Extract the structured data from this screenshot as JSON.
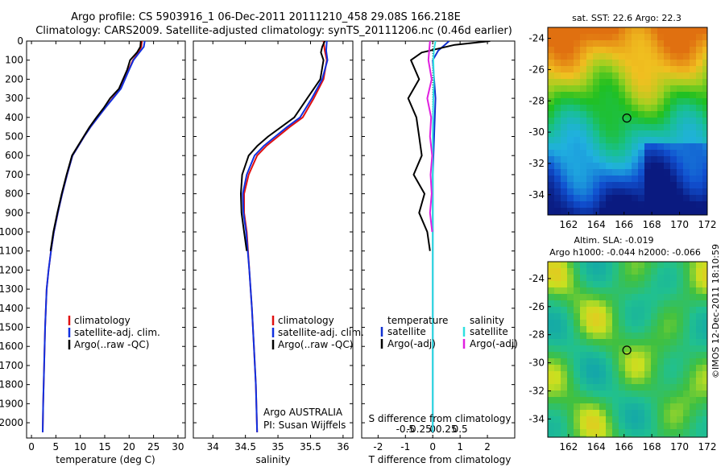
{
  "header": {
    "line1": "Argo profile: CS 5903916_1 06-Dec-2011 20111210_458 29.08S 166.218E",
    "line2": "Climatology: CARS2009. Satellite-adjusted climatology: synTS_20111206.nc (0.46d earlier)"
  },
  "colors": {
    "climatology": "#e01010",
    "satellite_clim": "#1030e0",
    "argo": "#000000",
    "t_satellite": "#1030d0",
    "s_satellite": "#30e0e0",
    "s_argo": "#e020e0",
    "t_argo": "#000000",
    "sst_warm": "#e08a10",
    "sst_cool": "#10208a"
  },
  "icons": {
    "marker": "circle-marker-icon"
  },
  "credit": "©IMOS 12-Dec-2011 18:10:59",
  "chart_data": [
    {
      "type": "line",
      "id": "temperature",
      "xlabel": "temperature (deg C)",
      "ylabel": "",
      "xlim": [
        -1,
        31.5
      ],
      "ylim": [
        2080,
        0
      ],
      "xticks": [
        0,
        5,
        10,
        15,
        20,
        25,
        30
      ],
      "yticks": [
        0,
        100,
        200,
        300,
        400,
        500,
        600,
        700,
        800,
        900,
        1000,
        1100,
        1200,
        1300,
        1400,
        1500,
        1600,
        1700,
        1800,
        1900,
        2000
      ],
      "legend": {
        "position": "lower-center",
        "entries": [
          "climatology",
          "satellite-adj. clim.",
          "Argo(..raw -QC)"
        ]
      },
      "series": [
        {
          "name": "climatology",
          "color_key": "climatology",
          "x": [
            22.6,
            22.5,
            21.9,
            20.8,
            19.9,
            18.2,
            16.6,
            15.1,
            13.6,
            12.1,
            10.8,
            9.6,
            8.4,
            7.3,
            6.3,
            5.4,
            4.6,
            4.0,
            3.5,
            3.1,
            2.8,
            2.6,
            2.4,
            2.3
          ],
          "y": [
            0,
            30,
            60,
            100,
            150,
            250,
            300,
            350,
            400,
            450,
            500,
            550,
            600,
            700,
            800,
            900,
            1000,
            1100,
            1200,
            1300,
            1500,
            1700,
            1900,
            2050
          ]
        },
        {
          "name": "satellite-adj. clim.",
          "color_key": "satellite_clim",
          "x": [
            23.2,
            23.0,
            22.1,
            20.9,
            20.0,
            18.3,
            16.7,
            15.1,
            13.6,
            12.1,
            10.8,
            9.6,
            8.4,
            7.3,
            6.3,
            5.4,
            4.6,
            4.0,
            3.5,
            3.1,
            2.8,
            2.6,
            2.4,
            2.3
          ],
          "y": [
            0,
            30,
            60,
            100,
            150,
            250,
            300,
            350,
            400,
            450,
            500,
            550,
            600,
            700,
            800,
            900,
            1000,
            1100,
            1200,
            1300,
            1500,
            1700,
            1900,
            2050
          ]
        },
        {
          "name": "Argo(..raw -QC)",
          "color_key": "argo",
          "x": [
            22.4,
            22.3,
            21.6,
            20.2,
            19.6,
            17.9,
            16.1,
            14.8,
            13.3,
            11.9,
            10.7,
            9.5,
            8.3,
            7.2,
            6.2,
            5.3,
            4.5,
            3.9
          ],
          "y": [
            0,
            30,
            60,
            100,
            150,
            250,
            300,
            350,
            400,
            450,
            500,
            550,
            600,
            700,
            800,
            900,
            1000,
            1100
          ]
        }
      ]
    },
    {
      "type": "line",
      "id": "salinity",
      "xlabel": "salinity",
      "ylabel": "",
      "xlim": [
        33.7,
        36.15
      ],
      "ylim": [
        2080,
        0
      ],
      "xticks": [
        34,
        34.5,
        35,
        35.5,
        36
      ],
      "xtick_labels": [
        "34",
        "34.5",
        "35",
        "35.5",
        "36"
      ],
      "legend": {
        "position": "lower-center",
        "entries": [
          "climatology",
          "satellite-adj. clim.",
          "Argo(..raw -QC)"
        ]
      },
      "annotation": [
        "Argo AUSTRALIA",
        "PI: Susan Wijffels"
      ],
      "series": [
        {
          "name": "climatology",
          "color_key": "climatology",
          "x": [
            35.7,
            35.72,
            35.75,
            35.7,
            35.55,
            35.38,
            35.18,
            35.0,
            34.82,
            34.68,
            34.55,
            34.48,
            34.48,
            34.52,
            34.56,
            34.6,
            34.63,
            34.66,
            34.68
          ],
          "y": [
            0,
            50,
            100,
            200,
            300,
            400,
            450,
            500,
            550,
            600,
            700,
            800,
            900,
            1000,
            1200,
            1400,
            1600,
            1800,
            2050
          ]
        },
        {
          "name": "satellite-adj. clim.",
          "color_key": "satellite_clim",
          "x": [
            35.75,
            35.74,
            35.76,
            35.68,
            35.52,
            35.34,
            35.14,
            34.96,
            34.78,
            34.64,
            34.52,
            34.46,
            34.47,
            34.51,
            34.56,
            34.6,
            34.63,
            34.66,
            34.68
          ],
          "y": [
            0,
            50,
            100,
            200,
            300,
            400,
            450,
            500,
            550,
            600,
            700,
            800,
            900,
            1000,
            1200,
            1400,
            1600,
            1800,
            2050
          ]
        },
        {
          "name": "Argo(..raw -QC)",
          "color_key": "argo",
          "x": [
            35.72,
            35.68,
            35.66,
            35.7,
            35.65,
            35.45,
            35.25,
            35.05,
            34.85,
            34.68,
            34.55,
            34.45,
            34.43,
            34.44,
            34.48,
            34.52
          ],
          "y": [
            0,
            30,
            60,
            100,
            200,
            300,
            400,
            450,
            500,
            550,
            600,
            700,
            800,
            900,
            1000,
            1100
          ]
        }
      ]
    },
    {
      "type": "line",
      "id": "differences",
      "xlabel": "T difference from climatology",
      "x2label": "S difference from climatology",
      "xlim": [
        -2.6,
        3.0
      ],
      "ylim": [
        2080,
        0
      ],
      "xticks": [
        -2,
        -1,
        0,
        1,
        2
      ],
      "x2ticks": [
        -0.5,
        -0.25,
        0,
        0.25,
        0.5
      ],
      "x2tick_labels": [
        "-0.5",
        "-0.25",
        "0",
        "0.25",
        "0.5"
      ],
      "legend": {
        "position": "lower-center",
        "temperature_title": "temperature",
        "salinity_title": "salinity",
        "entries": [
          "satellite",
          "Argo(-adj)",
          "satellite",
          "Argo(-adj)"
        ]
      },
      "series": [
        {
          "name": "satellite",
          "group": "temperature",
          "color_key": "t_satellite",
          "x": [
            0.6,
            0.2,
            0.0,
            0.05,
            0.1,
            0.05,
            0.0,
            0.0,
            0.0,
            0.0,
            0.0
          ],
          "y": [
            0,
            50,
            100,
            200,
            300,
            500,
            700,
            1000,
            1400,
            1800,
            2050
          ]
        },
        {
          "name": "Argo(-adj)",
          "group": "temperature",
          "color_key": "t_argo",
          "x": [
            2.1,
            0.8,
            -0.4,
            -0.8,
            -0.5,
            -0.9,
            -0.6,
            -0.5,
            -0.4,
            -0.7,
            -0.3,
            -0.5,
            -0.2,
            -0.1
          ],
          "y": [
            0,
            20,
            60,
            100,
            200,
            300,
            400,
            500,
            600,
            700,
            800,
            900,
            1000,
            1100
          ]
        },
        {
          "name": "satellite",
          "group": "salinity",
          "color_key": "s_satellite",
          "x": [
            0.05,
            0.02,
            0.01,
            0.02,
            0.01,
            0.0,
            0.0,
            0.0,
            0.0,
            0.0,
            0.0
          ],
          "y": [
            0,
            50,
            100,
            200,
            300,
            500,
            700,
            1000,
            1400,
            1800,
            2050
          ]
        },
        {
          "name": "Argo(-adj)",
          "group": "salinity",
          "color_key": "s_argo",
          "x": [
            -0.05,
            -0.08,
            -0.02,
            -0.1,
            -0.03,
            -0.05,
            -0.01,
            -0.04,
            -0.02,
            -0.05,
            -0.01
          ],
          "y": [
            0,
            100,
            200,
            300,
            400,
            500,
            600,
            700,
            800,
            900,
            1000
          ]
        }
      ]
    },
    {
      "type": "heatmap",
      "id": "sst-map",
      "title": "sat. SST: 22.6  Argo: 22.3",
      "xlim": [
        160.5,
        172
      ],
      "ylim": [
        -35.3,
        -23.3
      ],
      "xticks": [
        162,
        164,
        166,
        168,
        170,
        172
      ],
      "yticks": [
        -24,
        -26,
        -28,
        -30,
        -32,
        -34
      ],
      "marker": {
        "lon": 166.2,
        "lat": -29.1
      }
    },
    {
      "type": "heatmap",
      "id": "sla-map",
      "title": "Altim. SLA: -0.019",
      "subtitle": "Argo h1000: -0.044  h2000: -0.066",
      "xlim": [
        160.5,
        172
      ],
      "ylim": [
        -35.3,
        -22.8
      ],
      "xticks": [
        162,
        164,
        166,
        168,
        170,
        172
      ],
      "yticks": [
        -24,
        -26,
        -28,
        -30,
        -32,
        -34
      ],
      "marker": {
        "lon": 166.2,
        "lat": -29.1
      }
    }
  ]
}
